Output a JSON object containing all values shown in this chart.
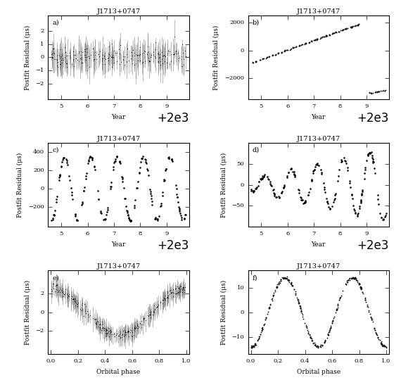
{
  "title": "J1713+0747",
  "ylabel": "Postfit Residual (μs)",
  "xlabel_year": "Year",
  "xlabel_phase": "Orbital phase",
  "year_start": 2004.5,
  "year_end": 2009.85,
  "year_ticks": [
    2005,
    2006,
    2007,
    2008,
    2009
  ],
  "panel_a": {
    "label": "a)",
    "ylim": [
      -3.2,
      3.2
    ],
    "yticks": [
      -2,
      -1,
      0,
      1,
      2
    ],
    "n_points": 300,
    "seed": 42
  },
  "panel_b": {
    "label": "b)",
    "ylim": [
      -3500,
      2500
    ],
    "yticks": [
      -2000,
      0,
      2000
    ]
  },
  "panel_c": {
    "label": "c)",
    "ylim": [
      -420,
      500
    ],
    "yticks": [
      -200,
      0,
      200,
      400
    ],
    "amplitude": 350
  },
  "panel_d": {
    "label": "d)",
    "ylim": [
      -100,
      100
    ],
    "yticks": [
      -50,
      0,
      50
    ],
    "amplitude": 80
  },
  "panel_e": {
    "label": "e)",
    "ylim": [
      -4.5,
      4.5
    ],
    "yticks": [
      -2,
      0,
      2
    ],
    "amplitude": 2.5
  },
  "panel_f": {
    "label": "f)",
    "ylim": [
      -17,
      17
    ],
    "yticks": [
      -10,
      0,
      10
    ],
    "amplitude": 14
  },
  "dot_color": "black",
  "font_size_title": 7,
  "font_size_label": 6.5,
  "font_size_tick": 6,
  "font_size_panel": 7
}
